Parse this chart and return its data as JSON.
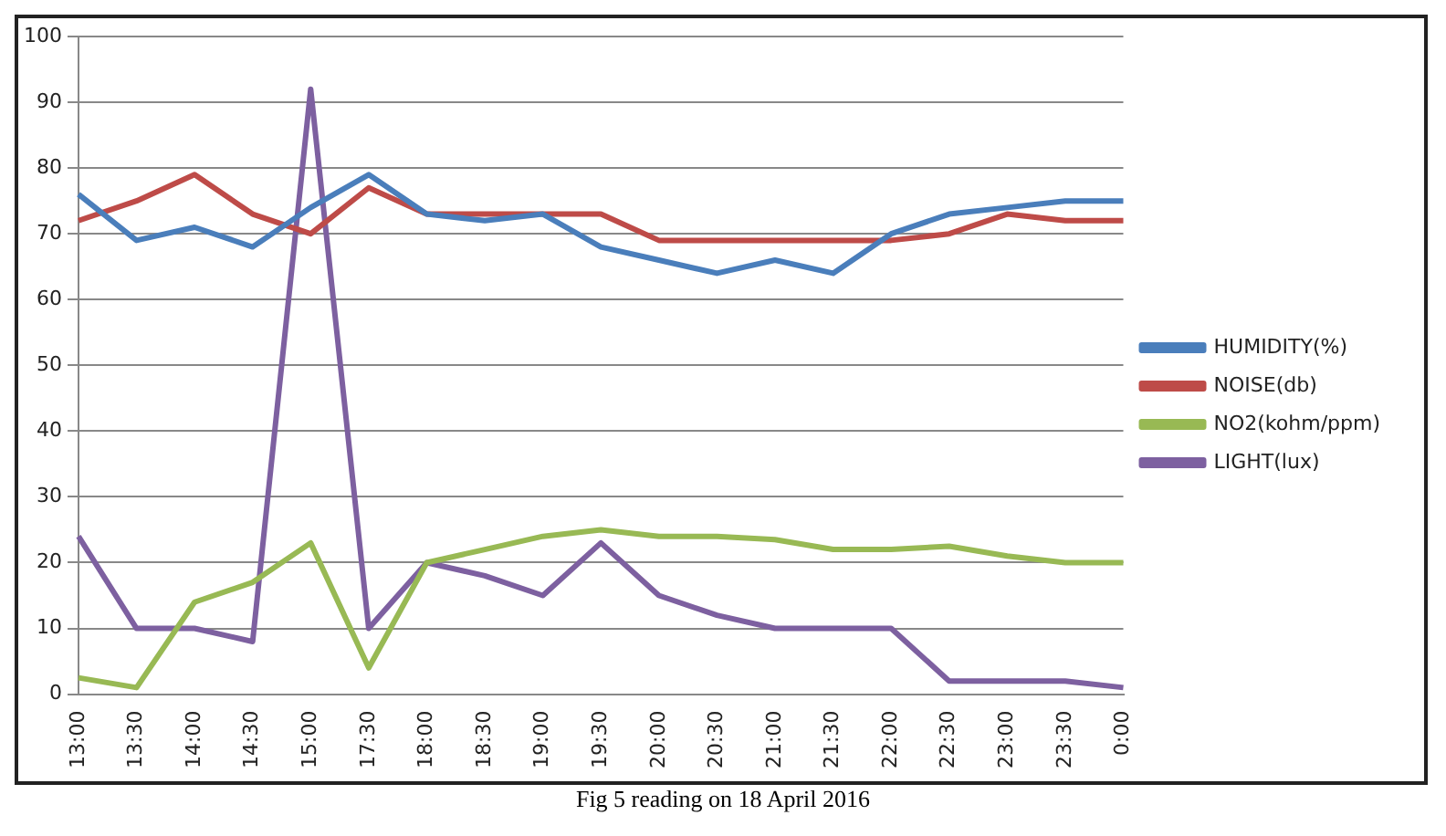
{
  "chart_data": {
    "type": "line",
    "categories": [
      "13:00",
      "13:30",
      "14:00",
      "14:30",
      "15:00",
      "17:30",
      "18:00",
      "18:30",
      "19:00",
      "19:30",
      "20:00",
      "20:30",
      "21:00",
      "21:30",
      "22:00",
      "22:30",
      "23:00",
      "23:30",
      "0:00"
    ],
    "series": [
      {
        "name": "HUMIDITY(%)",
        "color": "#4a7ebb",
        "values": [
          76,
          69,
          71,
          68,
          74,
          79,
          73,
          72,
          73,
          68,
          66,
          64,
          66,
          64,
          70,
          73,
          74,
          75,
          75
        ]
      },
      {
        "name": "NOISE(db)",
        "color": "#be4b48",
        "values": [
          72,
          75,
          79,
          73,
          70,
          77,
          73,
          73,
          73,
          73,
          69,
          69,
          69,
          69,
          69,
          70,
          73,
          72,
          72
        ]
      },
      {
        "name": "NO2(kohm/ppm)",
        "color": "#98b954",
        "values": [
          2.5,
          1,
          14,
          17,
          23,
          4,
          20,
          22,
          24,
          25,
          24,
          24,
          23.5,
          22,
          22,
          22.5,
          21,
          20,
          20
        ]
      },
      {
        "name": "LIGHT(lux)",
        "color": "#7d60a0",
        "values": [
          24,
          10,
          10,
          8,
          92,
          10,
          20,
          18,
          15,
          23,
          15,
          12,
          10,
          10,
          10,
          2,
          2,
          2,
          1
        ]
      }
    ],
    "ylim": [
      0,
      100
    ],
    "yticks": [
      0,
      10,
      20,
      30,
      40,
      50,
      60,
      70,
      80,
      90,
      100
    ],
    "grid": "y",
    "legend": "right",
    "marker": "none",
    "annotations": [
      "Fig 5 reading on 18 April 2016"
    ]
  }
}
